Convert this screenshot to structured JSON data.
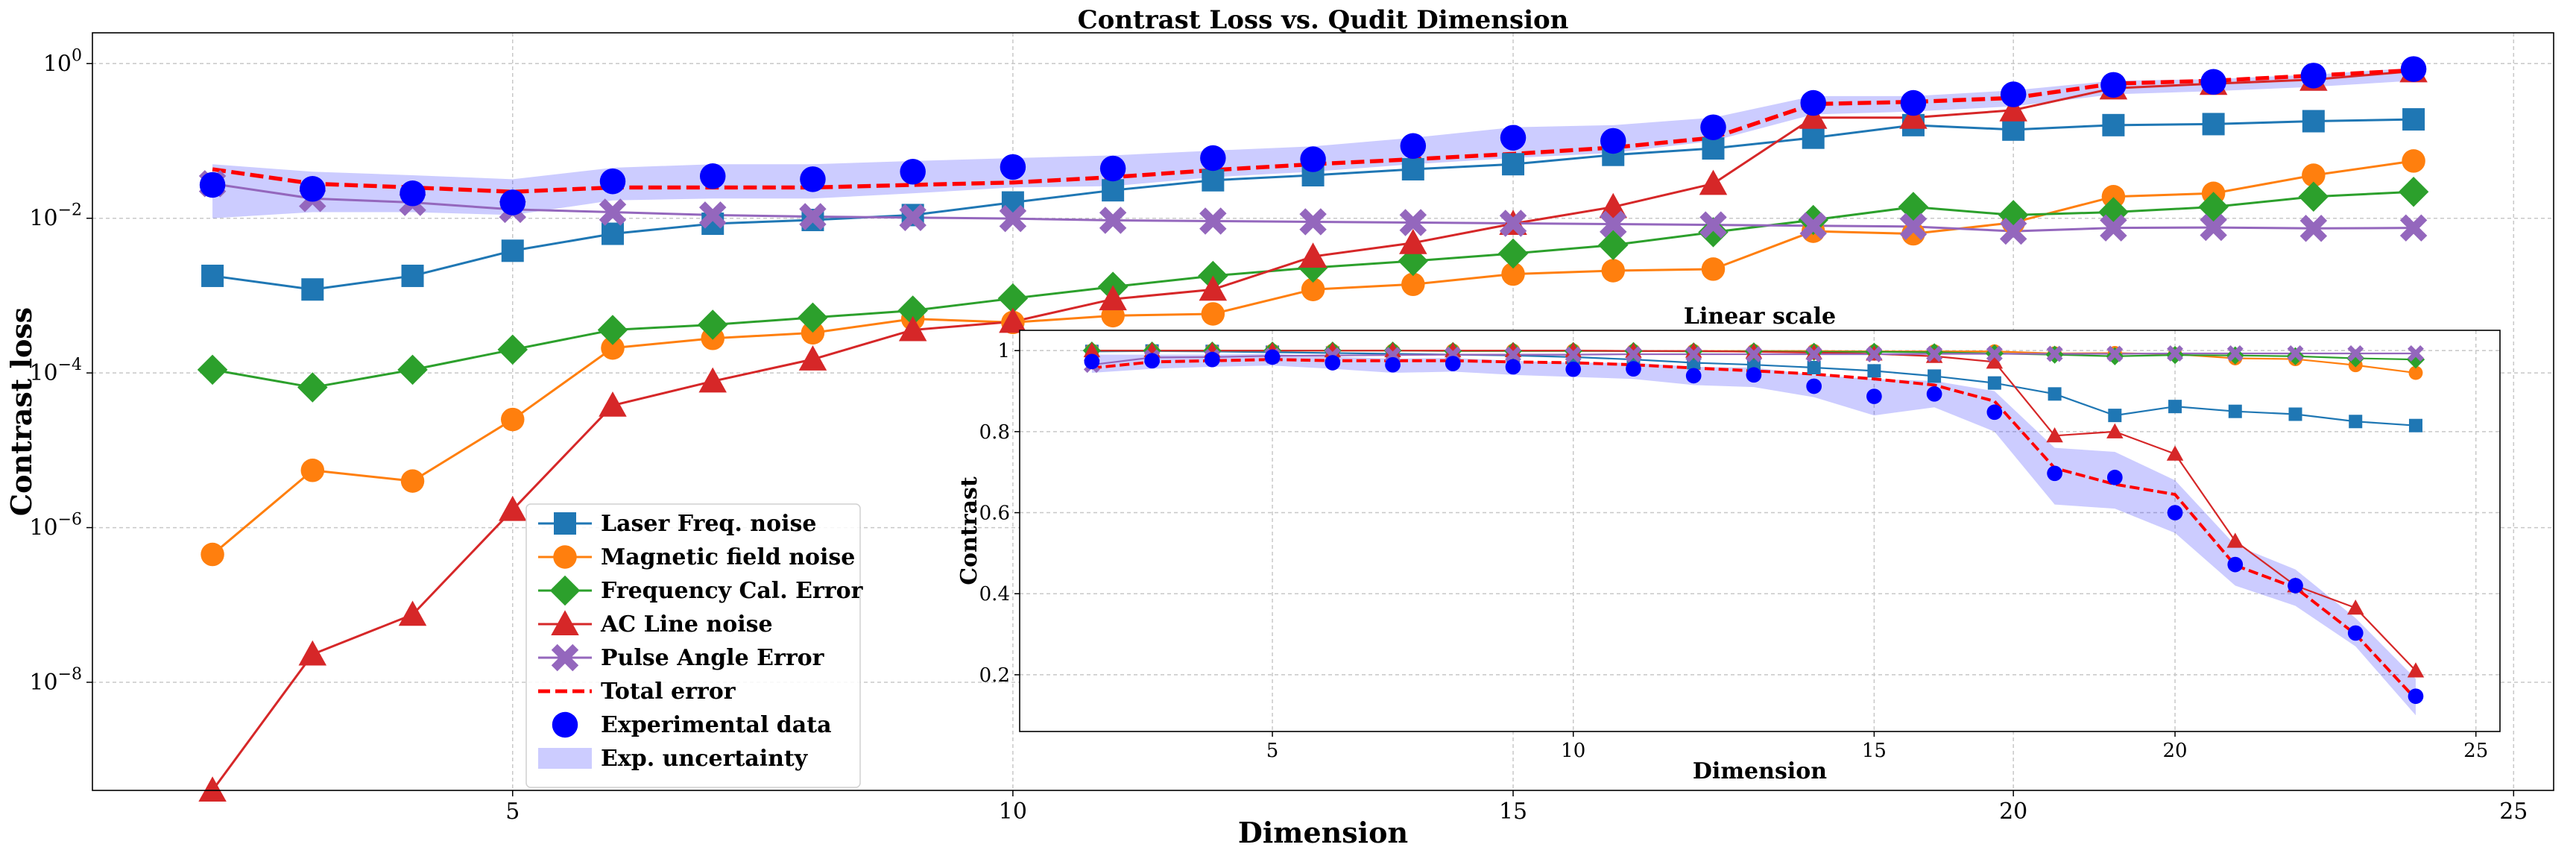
{
  "chart_data": [
    {
      "type": "line",
      "title": "Contrast Loss vs. Qudit Dimension",
      "xlabel": "Dimension",
      "ylabel": "Contrast loss",
      "yscale": "log",
      "xlim": [
        0.8,
        25.4
      ],
      "ylim": [
        4e-10,
        2.5
      ],
      "x_ticks": [
        5,
        10,
        15,
        20,
        25
      ],
      "y_ticks": [
        {
          "value": 1,
          "label": "10^0"
        },
        {
          "value": 0.01,
          "label": "10^-2"
        },
        {
          "value": 0.0001,
          "label": "10^-4"
        },
        {
          "value": 1e-06,
          "label": "10^-6"
        },
        {
          "value": 1e-08,
          "label": "10^-8"
        }
      ],
      "grid": true,
      "legend_position": "lower-left",
      "x": [
        2,
        3,
        4,
        5,
        6,
        7,
        8,
        9,
        10,
        11,
        12,
        13,
        14,
        15,
        16,
        17,
        18,
        19,
        20,
        21,
        22,
        23,
        24
      ],
      "series": [
        {
          "name": "Laser Freq. noise",
          "color": "#1f77b4",
          "marker": "square",
          "values": [
            0.0018,
            0.0012,
            0.0018,
            0.0038,
            0.0063,
            0.0085,
            0.0095,
            0.011,
            0.016,
            0.023,
            0.031,
            0.036,
            0.043,
            0.05,
            0.066,
            0.08,
            0.11,
            0.16,
            0.14,
            0.16,
            0.165,
            0.18,
            0.19
          ]
        },
        {
          "name": "Magnetic field noise",
          "color": "#ff7f0e",
          "marker": "circle",
          "values": [
            4.5e-07,
            5.5e-06,
            4e-06,
            2.5e-05,
            0.00021,
            0.00028,
            0.00033,
            0.0005,
            0.00045,
            0.00055,
            0.00058,
            0.0012,
            0.0014,
            0.0019,
            0.0021,
            0.0022,
            0.0068,
            0.0063,
            0.0088,
            0.019,
            0.021,
            0.036,
            0.055
          ]
        },
        {
          "name": "Frequency Cal. Error",
          "color": "#2ca02c",
          "marker": "diamond",
          "values": [
            0.00011,
            6.5e-05,
            0.00011,
            0.0002,
            0.00036,
            0.00042,
            0.00052,
            0.00064,
            0.00092,
            0.0013,
            0.0018,
            0.0023,
            0.0028,
            0.0035,
            0.0045,
            0.0066,
            0.0095,
            0.014,
            0.011,
            0.012,
            0.014,
            0.019,
            0.022
          ]
        },
        {
          "name": "AC Line noise",
          "color": "#d62728",
          "marker": "triangle",
          "values": [
            4e-10,
            2.3e-08,
            7.5e-08,
            1.7e-06,
            3.8e-05,
            7.8e-05,
            0.00015,
            0.00036,
            0.00046,
            0.0009,
            0.0012,
            0.0032,
            0.0048,
            0.0085,
            0.014,
            0.028,
            0.2,
            0.2,
            0.25,
            0.48,
            0.55,
            0.62,
            0.8
          ]
        },
        {
          "name": "Pulse Angle Error",
          "color": "#9467bd",
          "marker": "x",
          "values": [
            0.028,
            0.018,
            0.016,
            0.013,
            0.012,
            0.011,
            0.0105,
            0.0102,
            0.0099,
            0.0094,
            0.0092,
            0.009,
            0.0088,
            0.0086,
            0.0084,
            0.0082,
            0.008,
            0.0078,
            0.0068,
            0.0075,
            0.0076,
            0.0074,
            0.0075
          ]
        },
        {
          "name": "Total error",
          "color": "#ff0000",
          "marker": "none",
          "dashed": true,
          "values": [
            0.043,
            0.028,
            0.025,
            0.022,
            0.025,
            0.025,
            0.025,
            0.027,
            0.029,
            0.034,
            0.042,
            0.05,
            0.058,
            0.068,
            0.082,
            0.11,
            0.3,
            0.32,
            0.36,
            0.55,
            0.6,
            0.7,
            0.82
          ]
        },
        {
          "name": "Experimental data",
          "color": "#0000ff",
          "marker": "bigcircle",
          "no_line": true,
          "values": [
            0.027,
            0.024,
            0.021,
            0.016,
            0.03,
            0.035,
            0.032,
            0.04,
            0.046,
            0.044,
            0.06,
            0.058,
            0.086,
            0.11,
            0.1,
            0.15,
            0.31,
            0.31,
            0.4,
            0.53,
            0.58,
            0.7,
            0.85
          ]
        },
        {
          "name": "Exp. uncertainty",
          "color": "#0000ff",
          "marker": "band",
          "lower": [
            0.01,
            0.012,
            0.012,
            0.011,
            0.017,
            0.018,
            0.018,
            0.021,
            0.025,
            0.026,
            0.034,
            0.04,
            0.05,
            0.06,
            0.07,
            0.1,
            0.22,
            0.24,
            0.28,
            0.4,
            0.44,
            0.5,
            0.6
          ],
          "upper": [
            0.05,
            0.04,
            0.036,
            0.032,
            0.045,
            0.05,
            0.05,
            0.055,
            0.06,
            0.065,
            0.075,
            0.085,
            0.11,
            0.15,
            0.16,
            0.2,
            0.38,
            0.38,
            0.45,
            0.6,
            0.63,
            0.72,
            0.88
          ]
        }
      ]
    },
    {
      "type": "line",
      "title": "Linear scale",
      "xlabel": "Dimension",
      "ylabel": "Contrast",
      "xlim": [
        0.8,
        25.4
      ],
      "ylim": [
        0.06,
        1.05
      ],
      "x_ticks": [
        5,
        10,
        15,
        20,
        25
      ],
      "y_ticks": [
        0.2,
        0.4,
        0.6,
        0.8,
        1.0
      ],
      "grid": true,
      "x": [
        2,
        3,
        4,
        5,
        6,
        7,
        8,
        9,
        10,
        11,
        12,
        13,
        14,
        15,
        16,
        17,
        18,
        19,
        20,
        21,
        22,
        23,
        24
      ],
      "series": [
        {
          "name": "Laser Freq. noise",
          "color": "#1f77b4",
          "marker": "square",
          "values": [
            0.998,
            0.999,
            0.998,
            0.996,
            0.994,
            0.992,
            0.99,
            0.988,
            0.984,
            0.978,
            0.97,
            0.965,
            0.958,
            0.95,
            0.937,
            0.92,
            0.893,
            0.84,
            0.862,
            0.85,
            0.843,
            0.825,
            0.815
          ]
        },
        {
          "name": "Magnetic field noise",
          "color": "#ff7f0e",
          "marker": "circle",
          "values": [
            1.0,
            1.0,
            1.0,
            1.0,
            1.0,
            1.0,
            1.0,
            1.0,
            1.0,
            0.999,
            0.999,
            0.999,
            0.999,
            0.998,
            0.998,
            0.998,
            0.993,
            0.994,
            0.991,
            0.981,
            0.979,
            0.964,
            0.945
          ]
        },
        {
          "name": "Frequency Cal. Error",
          "color": "#2ca02c",
          "marker": "diamond",
          "values": [
            1.0,
            1.0,
            1.0,
            1.0,
            1.0,
            1.0,
            0.999,
            0.999,
            0.999,
            0.999,
            0.998,
            0.998,
            0.997,
            0.997,
            0.996,
            0.993,
            0.99,
            0.986,
            0.989,
            0.988,
            0.986,
            0.981,
            0.978
          ]
        },
        {
          "name": "AC Line noise",
          "color": "#d62728",
          "marker": "triangle",
          "values": [
            1.0,
            1.0,
            1.0,
            1.0,
            1.0,
            1.0,
            1.0,
            1.0,
            1.0,
            0.999,
            0.999,
            0.997,
            0.995,
            0.992,
            0.986,
            0.972,
            0.79,
            0.8,
            0.745,
            0.53,
            0.42,
            0.365,
            0.21
          ]
        },
        {
          "name": "Pulse Angle Error",
          "color": "#9467bd",
          "marker": "x",
          "values": [
            0.965,
            0.983,
            0.984,
            0.987,
            0.988,
            0.989,
            0.99,
            0.99,
            0.99,
            0.991,
            0.991,
            0.991,
            0.991,
            0.991,
            0.992,
            0.992,
            0.992,
            0.992,
            0.993,
            0.993,
            0.993,
            0.993,
            0.993
          ]
        },
        {
          "name": "Total error",
          "color": "#ff0000",
          "marker": "none",
          "dashed": true,
          "values": [
            0.957,
            0.972,
            0.975,
            0.978,
            0.975,
            0.975,
            0.975,
            0.972,
            0.97,
            0.965,
            0.957,
            0.95,
            0.942,
            0.93,
            0.915,
            0.875,
            0.71,
            0.67,
            0.645,
            0.47,
            0.415,
            0.3,
            0.14
          ]
        },
        {
          "name": "Experimental data",
          "color": "#0000ff",
          "marker": "bigcircle",
          "no_line": true,
          "values": [
            0.973,
            0.975,
            0.978,
            0.984,
            0.97,
            0.965,
            0.968,
            0.96,
            0.954,
            0.955,
            0.938,
            0.94,
            0.912,
            0.887,
            0.893,
            0.848,
            0.697,
            0.687,
            0.6,
            0.472,
            0.42,
            0.303,
            0.147
          ]
        },
        {
          "name": "Exp. uncertainty",
          "color": "#0000ff",
          "marker": "band",
          "lower": [
            0.945,
            0.955,
            0.96,
            0.963,
            0.955,
            0.945,
            0.948,
            0.94,
            0.935,
            0.93,
            0.915,
            0.91,
            0.885,
            0.84,
            0.86,
            0.8,
            0.62,
            0.61,
            0.55,
            0.42,
            0.37,
            0.27,
            0.1
          ],
          "upper": [
            0.99,
            0.99,
            0.99,
            0.992,
            0.985,
            0.98,
            0.982,
            0.975,
            0.97,
            0.97,
            0.96,
            0.958,
            0.94,
            0.93,
            0.925,
            0.9,
            0.76,
            0.75,
            0.68,
            0.52,
            0.46,
            0.34,
            0.19
          ]
        }
      ]
    }
  ]
}
